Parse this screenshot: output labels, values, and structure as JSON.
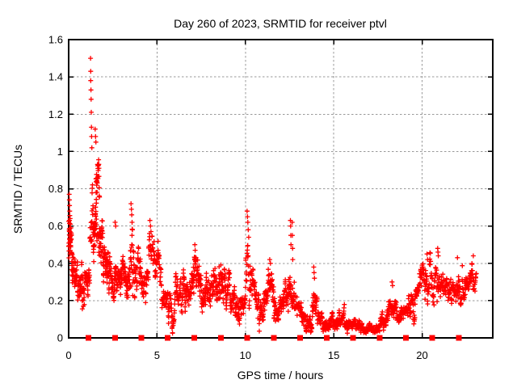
{
  "window": {
    "title": "Day 260 of 2023, SRMTID for receiver ptvl"
  },
  "colors": {
    "background": "#ffffff",
    "axis": "#000000",
    "text": "#000000",
    "data": "#ff0000",
    "grid": "#999999"
  },
  "chart_data": {
    "type": "scatter",
    "title": "Day 260 of 2023, SRMTID for receiver ptvl",
    "xlabel": "GPS time / hours",
    "ylabel": "SRMTID / TECUs",
    "xlim": [
      0,
      24
    ],
    "ylim": [
      0,
      1.6
    ],
    "x_ticks": [
      0,
      5,
      10,
      15,
      20
    ],
    "x_tick_labels": [
      "0",
      "5",
      "10",
      "15",
      "20"
    ],
    "y_ticks": [
      0,
      0.2,
      0.4,
      0.6,
      0.8,
      1.0,
      1.2,
      1.4,
      1.6
    ],
    "y_tick_labels": [
      "0",
      "0.2",
      "0.4",
      "0.6",
      "0.8",
      "1",
      "1.2",
      "1.4",
      "1.6"
    ],
    "grid": {
      "show": true,
      "style": "dashed",
      "x_lines": [
        5,
        10,
        15,
        20
      ],
      "y_lines": [
        0.2,
        0.4,
        0.6,
        0.8,
        1.0,
        1.2,
        1.4
      ]
    },
    "legend": "none",
    "series": [
      {
        "name": "srmtid",
        "marker": "plus",
        "color": "#ff0000",
        "seed": 1234,
        "segments_format": [
          "t_start_h",
          "t_end_h",
          "n_points",
          "center_start_TECU",
          "center_end_TECU",
          "spread_TECU"
        ],
        "segments": [
          [
            0.0,
            0.1,
            22,
            0.55,
            0.52,
            0.2
          ],
          [
            0.05,
            0.22,
            20,
            0.48,
            0.44,
            0.14
          ],
          [
            0.18,
            0.5,
            40,
            0.37,
            0.33,
            0.11
          ],
          [
            0.5,
            0.9,
            48,
            0.3,
            0.27,
            0.12
          ],
          [
            0.9,
            1.2,
            32,
            0.29,
            0.36,
            0.09
          ],
          [
            1.2,
            1.4,
            20,
            0.55,
            0.62,
            0.22
          ],
          [
            1.38,
            1.58,
            26,
            0.7,
            0.8,
            0.18
          ],
          [
            1.55,
            1.75,
            26,
            0.9,
            0.88,
            0.11
          ],
          [
            1.4,
            1.82,
            25,
            0.6,
            0.55,
            0.13
          ],
          [
            1.75,
            1.98,
            28,
            0.5,
            0.42,
            0.13
          ],
          [
            1.95,
            2.4,
            60,
            0.38,
            0.34,
            0.11
          ],
          [
            2.4,
            2.78,
            42,
            0.31,
            0.3,
            0.1
          ],
          [
            2.78,
            3.15,
            42,
            0.29,
            0.28,
            0.1
          ],
          [
            3.15,
            3.48,
            36,
            0.29,
            0.33,
            0.11
          ],
          [
            3.48,
            3.75,
            28,
            0.45,
            0.38,
            0.22
          ],
          [
            3.75,
            4.2,
            42,
            0.33,
            0.27,
            0.13
          ],
          [
            4.2,
            4.52,
            30,
            0.27,
            0.3,
            0.11
          ],
          [
            4.52,
            4.85,
            24,
            0.49,
            0.46,
            0.12
          ],
          [
            4.85,
            5.25,
            38,
            0.38,
            0.33,
            0.11
          ],
          [
            5.25,
            5.62,
            32,
            0.24,
            0.17,
            0.11
          ],
          [
            5.62,
            6.02,
            38,
            0.13,
            0.15,
            0.1
          ],
          [
            6.02,
            6.48,
            42,
            0.2,
            0.24,
            0.1
          ],
          [
            6.48,
            6.95,
            46,
            0.27,
            0.25,
            0.11
          ],
          [
            6.95,
            7.32,
            38,
            0.3,
            0.32,
            0.12
          ],
          [
            7.32,
            7.72,
            42,
            0.27,
            0.24,
            0.1
          ],
          [
            7.72,
            8.32,
            56,
            0.29,
            0.29,
            0.11
          ],
          [
            8.32,
            8.68,
            38,
            0.24,
            0.27,
            0.1
          ],
          [
            8.68,
            9.12,
            46,
            0.29,
            0.24,
            0.1
          ],
          [
            9.12,
            9.62,
            46,
            0.21,
            0.17,
            0.09
          ],
          [
            9.62,
            10.02,
            38,
            0.15,
            0.19,
            0.08
          ],
          [
            10.02,
            10.38,
            32,
            0.4,
            0.33,
            0.16
          ],
          [
            10.38,
            10.78,
            38,
            0.27,
            0.19,
            0.11
          ],
          [
            10.78,
            11.22,
            42,
            0.16,
            0.19,
            0.09
          ],
          [
            11.22,
            11.62,
            38,
            0.26,
            0.24,
            0.12
          ],
          [
            11.62,
            12.12,
            46,
            0.17,
            0.14,
            0.09
          ],
          [
            12.12,
            12.52,
            42,
            0.21,
            0.24,
            0.09
          ],
          [
            12.52,
            12.78,
            24,
            0.26,
            0.23,
            0.11
          ],
          [
            12.78,
            13.32,
            46,
            0.17,
            0.13,
            0.08
          ],
          [
            13.32,
            13.78,
            46,
            0.09,
            0.08,
            0.05
          ],
          [
            13.78,
            14.08,
            30,
            0.18,
            0.13,
            0.1
          ],
          [
            14.08,
            15.02,
            80,
            0.09,
            0.085,
            0.05
          ],
          [
            15.02,
            15.62,
            52,
            0.095,
            0.09,
            0.055
          ],
          [
            15.62,
            16.52,
            78,
            0.075,
            0.065,
            0.04
          ],
          [
            16.52,
            17.55,
            88,
            0.055,
            0.05,
            0.03
          ],
          [
            17.55,
            18.02,
            42,
            0.07,
            0.11,
            0.05
          ],
          [
            18.02,
            18.62,
            50,
            0.15,
            0.16,
            0.08
          ],
          [
            18.62,
            19.22,
            50,
            0.12,
            0.13,
            0.06
          ],
          [
            19.22,
            19.82,
            50,
            0.16,
            0.2,
            0.08
          ],
          [
            19.82,
            20.42,
            50,
            0.24,
            0.28,
            0.1
          ],
          [
            20.42,
            21.22,
            62,
            0.3,
            0.31,
            0.12
          ],
          [
            21.22,
            21.82,
            50,
            0.27,
            0.25,
            0.09
          ],
          [
            21.82,
            22.42,
            50,
            0.26,
            0.24,
            0.12
          ],
          [
            22.42,
            23.08,
            50,
            0.31,
            0.34,
            0.08
          ]
        ],
        "peak_points": [
          [
            0.03,
            0.77
          ],
          [
            0.04,
            0.74
          ],
          [
            0.05,
            0.71
          ],
          [
            0.06,
            0.68
          ],
          [
            0.08,
            0.64
          ],
          [
            0.1,
            0.61
          ],
          [
            0.13,
            0.59
          ],
          [
            1.24,
            1.5
          ],
          [
            1.25,
            1.43
          ],
          [
            1.25,
            1.38
          ],
          [
            1.26,
            1.33
          ],
          [
            1.27,
            1.28
          ],
          [
            1.28,
            1.21
          ],
          [
            1.29,
            1.13
          ],
          [
            1.3,
            1.08
          ],
          [
            1.31,
            1.02
          ],
          [
            1.5,
            1.12
          ],
          [
            1.52,
            1.08
          ],
          [
            1.54,
            1.05
          ],
          [
            2.63,
            0.62
          ],
          [
            2.66,
            0.6
          ],
          [
            3.53,
            0.72
          ],
          [
            3.55,
            0.69
          ],
          [
            3.57,
            0.66
          ],
          [
            3.59,
            0.62
          ],
          [
            3.61,
            0.58
          ],
          [
            4.6,
            0.63
          ],
          [
            4.63,
            0.6
          ],
          [
            4.66,
            0.57
          ],
          [
            7.14,
            0.5
          ],
          [
            7.16,
            0.47
          ],
          [
            10.1,
            0.68
          ],
          [
            10.12,
            0.65
          ],
          [
            10.14,
            0.62
          ],
          [
            10.16,
            0.58
          ],
          [
            10.19,
            0.54
          ],
          [
            11.38,
            0.42
          ],
          [
            11.42,
            0.4
          ],
          [
            12.55,
            0.63
          ],
          [
            12.56,
            0.6
          ],
          [
            12.57,
            0.55
          ],
          [
            12.58,
            0.5
          ],
          [
            12.65,
            0.62
          ],
          [
            12.66,
            0.55
          ],
          [
            12.67,
            0.48
          ],
          [
            12.68,
            0.42
          ],
          [
            13.87,
            0.38
          ],
          [
            13.89,
            0.35
          ],
          [
            13.91,
            0.32
          ],
          [
            18.3,
            0.3
          ],
          [
            18.33,
            0.28
          ],
          [
            20.0,
            0.38
          ],
          [
            20.28,
            0.45
          ],
          [
            20.31,
            0.42
          ],
          [
            20.88,
            0.48
          ],
          [
            20.9,
            0.46
          ],
          [
            20.92,
            0.44
          ],
          [
            22.0,
            0.43
          ],
          [
            22.9,
            0.44
          ]
        ]
      },
      {
        "name": "baseline-markers",
        "marker": "filled-square",
        "color": "#ff0000",
        "y": 0,
        "x": [
          1.12,
          2.62,
          4.11,
          5.61,
          7.11,
          8.61,
          10.1,
          11.6,
          13.1,
          14.6,
          16.09,
          17.59,
          19.09,
          20.58,
          22.08
        ]
      }
    ]
  }
}
